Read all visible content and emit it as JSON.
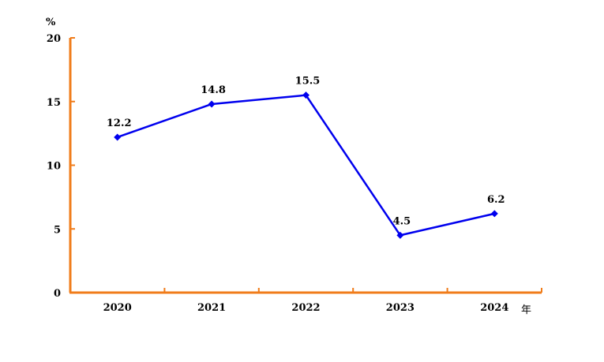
{
  "chart_data": {
    "type": "line",
    "categories": [
      "2020",
      "2021",
      "2022",
      "2023",
      "2024"
    ],
    "series": [
      {
        "values": [
          12.2,
          14.8,
          15.5,
          4.5,
          6.2
        ]
      }
    ],
    "data_labels": [
      "12.2",
      "14.8",
      "15.5",
      "4.5",
      "6.2"
    ],
    "y_ticks": [
      "0",
      "5",
      "10",
      "15",
      "20"
    ],
    "y_tick_values": [
      0,
      5,
      10,
      15,
      20
    ],
    "ylim": [
      0,
      20
    ],
    "ylabel": "%",
    "xlabel": "年",
    "grid": false,
    "colors": {
      "axis": "#f07c1a",
      "line": "#0000ee",
      "text": "#000000"
    }
  }
}
